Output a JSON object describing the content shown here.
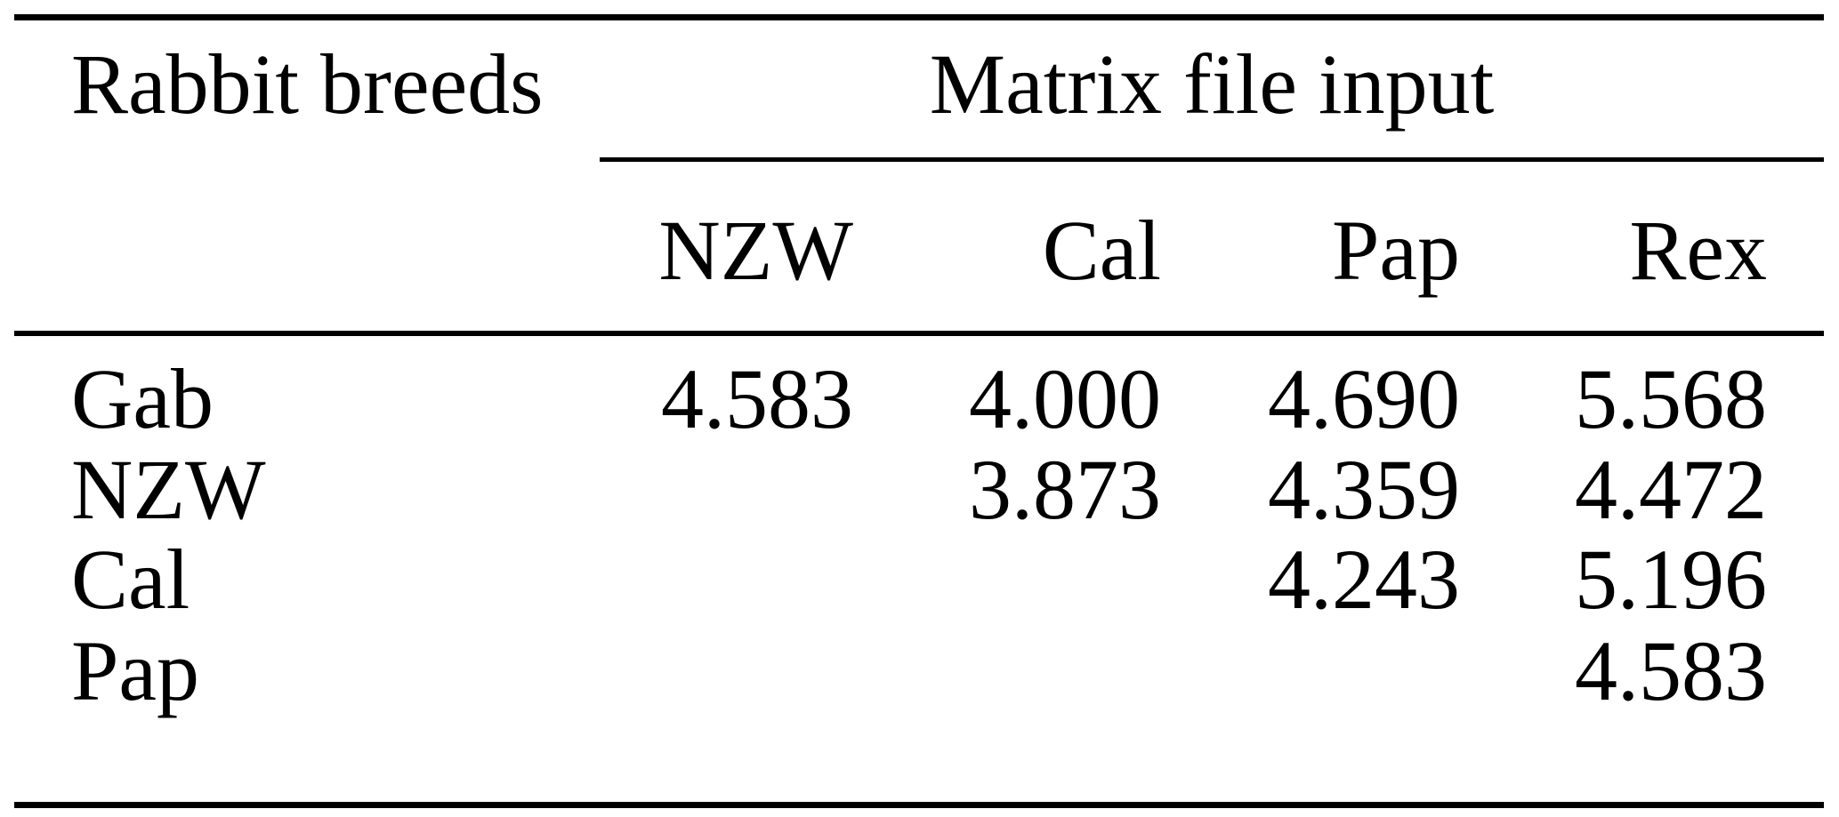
{
  "table": {
    "stub_header": "Rabbit breeds",
    "group_header": "Matrix file input",
    "columns": [
      "NZW",
      "Cal",
      "Pap",
      "Rex"
    ],
    "rows": [
      {
        "label": "Gab",
        "values": [
          "4.583",
          "4.000",
          "4.690",
          "5.568"
        ]
      },
      {
        "label": "NZW",
        "values": [
          "",
          "3.873",
          "4.359",
          "4.472"
        ]
      },
      {
        "label": "Cal",
        "values": [
          "",
          "",
          "4.243",
          "5.196"
        ]
      },
      {
        "label": "Pap",
        "values": [
          "",
          "",
          "",
          "4.583"
        ]
      }
    ]
  },
  "colors": {
    "background": "#ffffff",
    "text": "#000000",
    "rule": "#000000"
  }
}
